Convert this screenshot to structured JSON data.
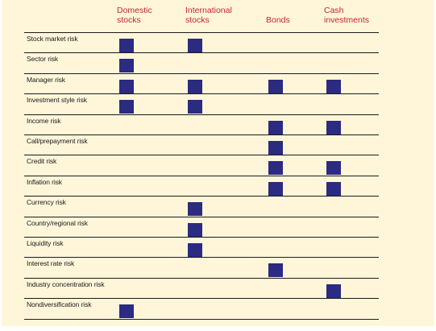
{
  "columns": [
    {
      "line1": "Domestic",
      "line2": "stocks"
    },
    {
      "line1": "International",
      "line2": "stocks"
    },
    {
      "line1": "",
      "line2": "Bonds"
    },
    {
      "line1": "Cash",
      "line2": "investments"
    }
  ],
  "rows": [
    {
      "label": "Stock market risk",
      "marks": [
        true,
        true,
        false,
        false
      ]
    },
    {
      "label": "Sector risk",
      "marks": [
        true,
        false,
        false,
        false
      ]
    },
    {
      "label": "Manager risk",
      "marks": [
        true,
        true,
        true,
        true
      ]
    },
    {
      "label": "Investment style risk",
      "marks": [
        true,
        true,
        false,
        false
      ]
    },
    {
      "label": "Income risk",
      "marks": [
        false,
        false,
        true,
        true
      ]
    },
    {
      "label": "Call/prepayment risk",
      "marks": [
        false,
        false,
        true,
        false
      ]
    },
    {
      "label": "Credit risk",
      "marks": [
        false,
        false,
        true,
        true
      ]
    },
    {
      "label": "Inflation risk",
      "marks": [
        false,
        false,
        true,
        true
      ]
    },
    {
      "label": "Currency risk",
      "marks": [
        false,
        true,
        false,
        false
      ]
    },
    {
      "label": "Country/regional risk",
      "marks": [
        false,
        true,
        false,
        false
      ]
    },
    {
      "label": "Liquidity risk",
      "marks": [
        false,
        true,
        false,
        false
      ]
    },
    {
      "label": "Interest rate risk",
      "marks": [
        false,
        false,
        true,
        false
      ]
    },
    {
      "label": "Industry concentration risk",
      "marks": [
        false,
        false,
        false,
        true
      ]
    },
    {
      "label": "Nondiversification risk",
      "marks": [
        true,
        false,
        false,
        false
      ]
    }
  ],
  "colors": {
    "background": "#fff6da",
    "header_text": "#c0282d",
    "mark": "#2b2b82",
    "rule": "#1a1a1a"
  }
}
